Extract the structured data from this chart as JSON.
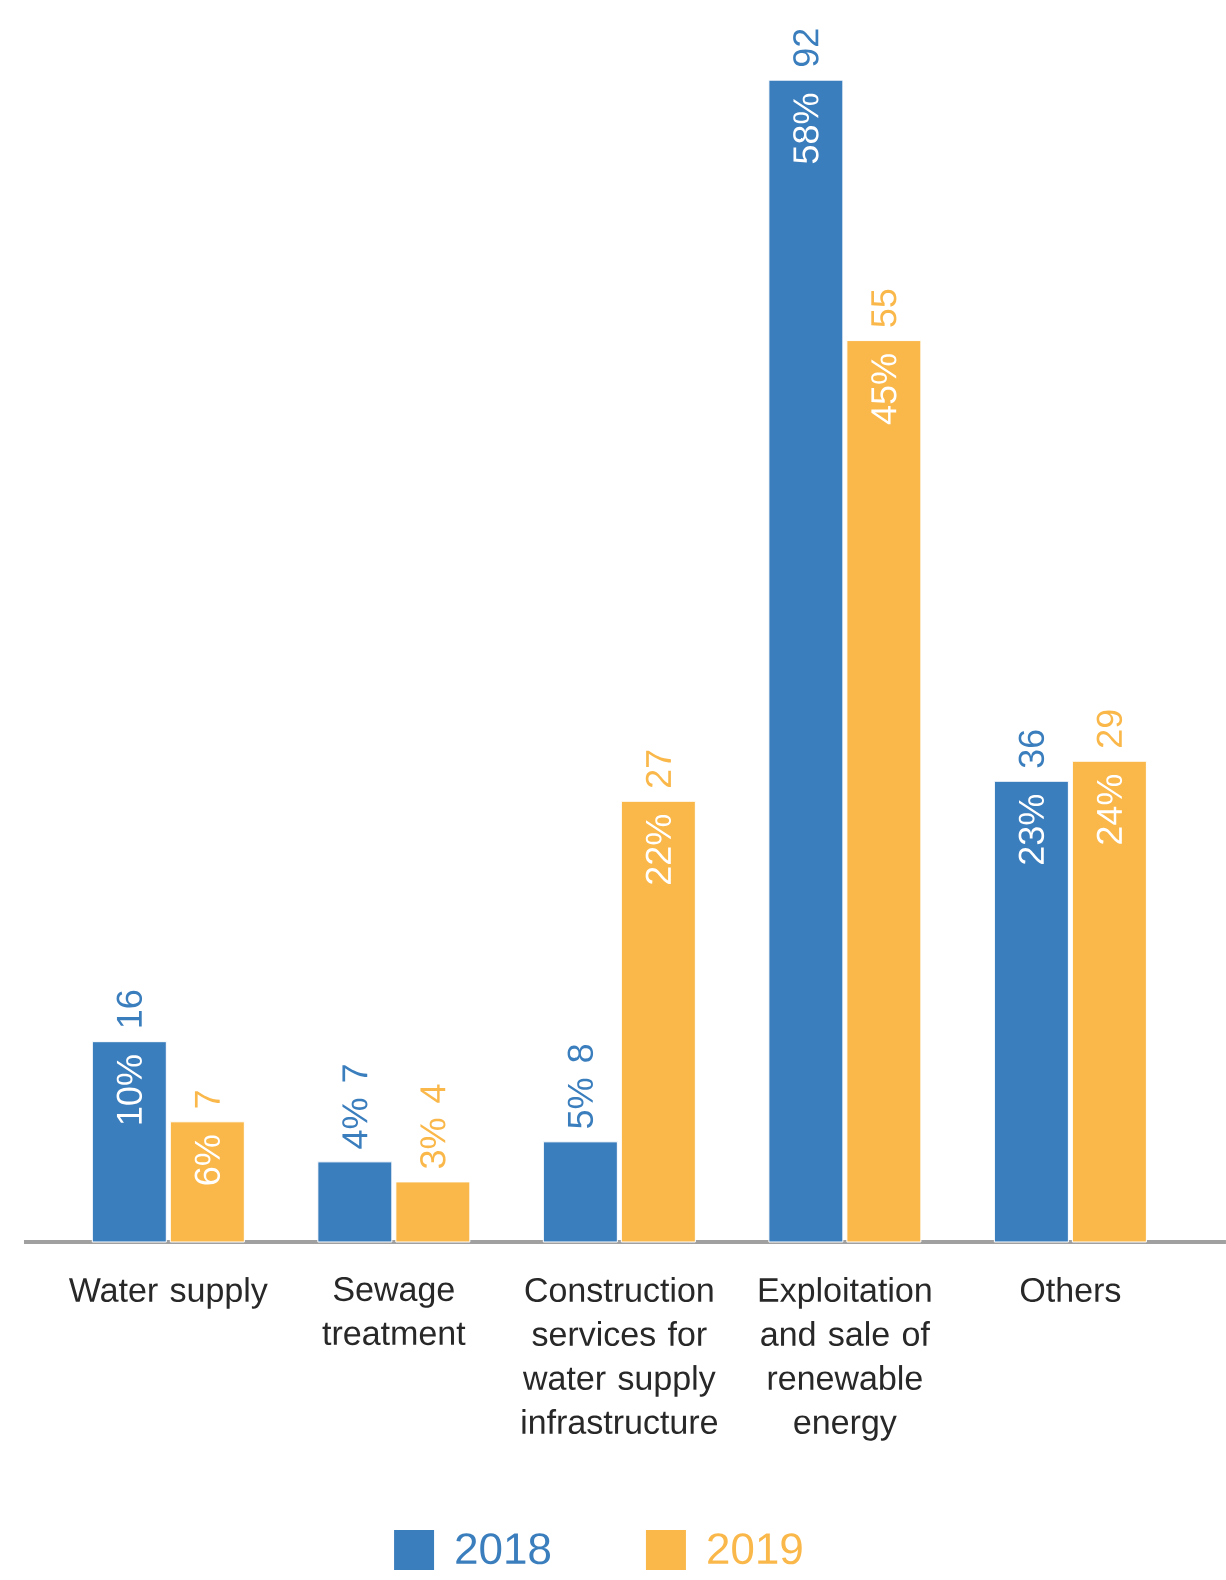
{
  "chart_data": {
    "type": "bar",
    "legend": "bottom",
    "categories": [
      "Water supply",
      "Sewage treatment",
      "Construction services for water supply infrastructure",
      "Exploitation and sale of renewable energy",
      "Others"
    ],
    "series": [
      {
        "name": "2018",
        "color": "#3b7ebd",
        "values": [
          10,
          4,
          5,
          58,
          23
        ],
        "value_labels": [
          "10%",
          "4%",
          "5%",
          "58%",
          "23%"
        ]
      },
      {
        "name": "2019",
        "color": "#fab84b",
        "values": [
          6,
          3,
          22,
          45,
          24
        ],
        "value_labels": [
          "6%",
          "3%",
          "22%",
          "45%",
          "24%"
        ]
      }
    ],
    "annotations": [
      {
        "text": "16",
        "x": "Water supply",
        "y": 10
      },
      {
        "text": "7",
        "x": "Sewage treatment",
        "y": 4
      },
      {
        "text": "8",
        "x": "Construction services for water supply infrastructure",
        "y": 5
      },
      {
        "text": "92",
        "x": "Exploitation and sale of renewable energy",
        "y": 58
      },
      {
        "text": "36",
        "x": "Others",
        "y": 23
      },
      {
        "text": "7",
        "x": "Water supply",
        "y": 6
      },
      {
        "text": "4",
        "x": "Sewage treatment",
        "y": 3
      },
      {
        "text": "27",
        "x": "Construction services for water supply infrastructure",
        "y": 22
      },
      {
        "text": "55",
        "x": "Exploitation and sale of renewable energy",
        "y": 45
      },
      {
        "text": "29",
        "x": "Others",
        "y": 24
      }
    ]
  }
}
